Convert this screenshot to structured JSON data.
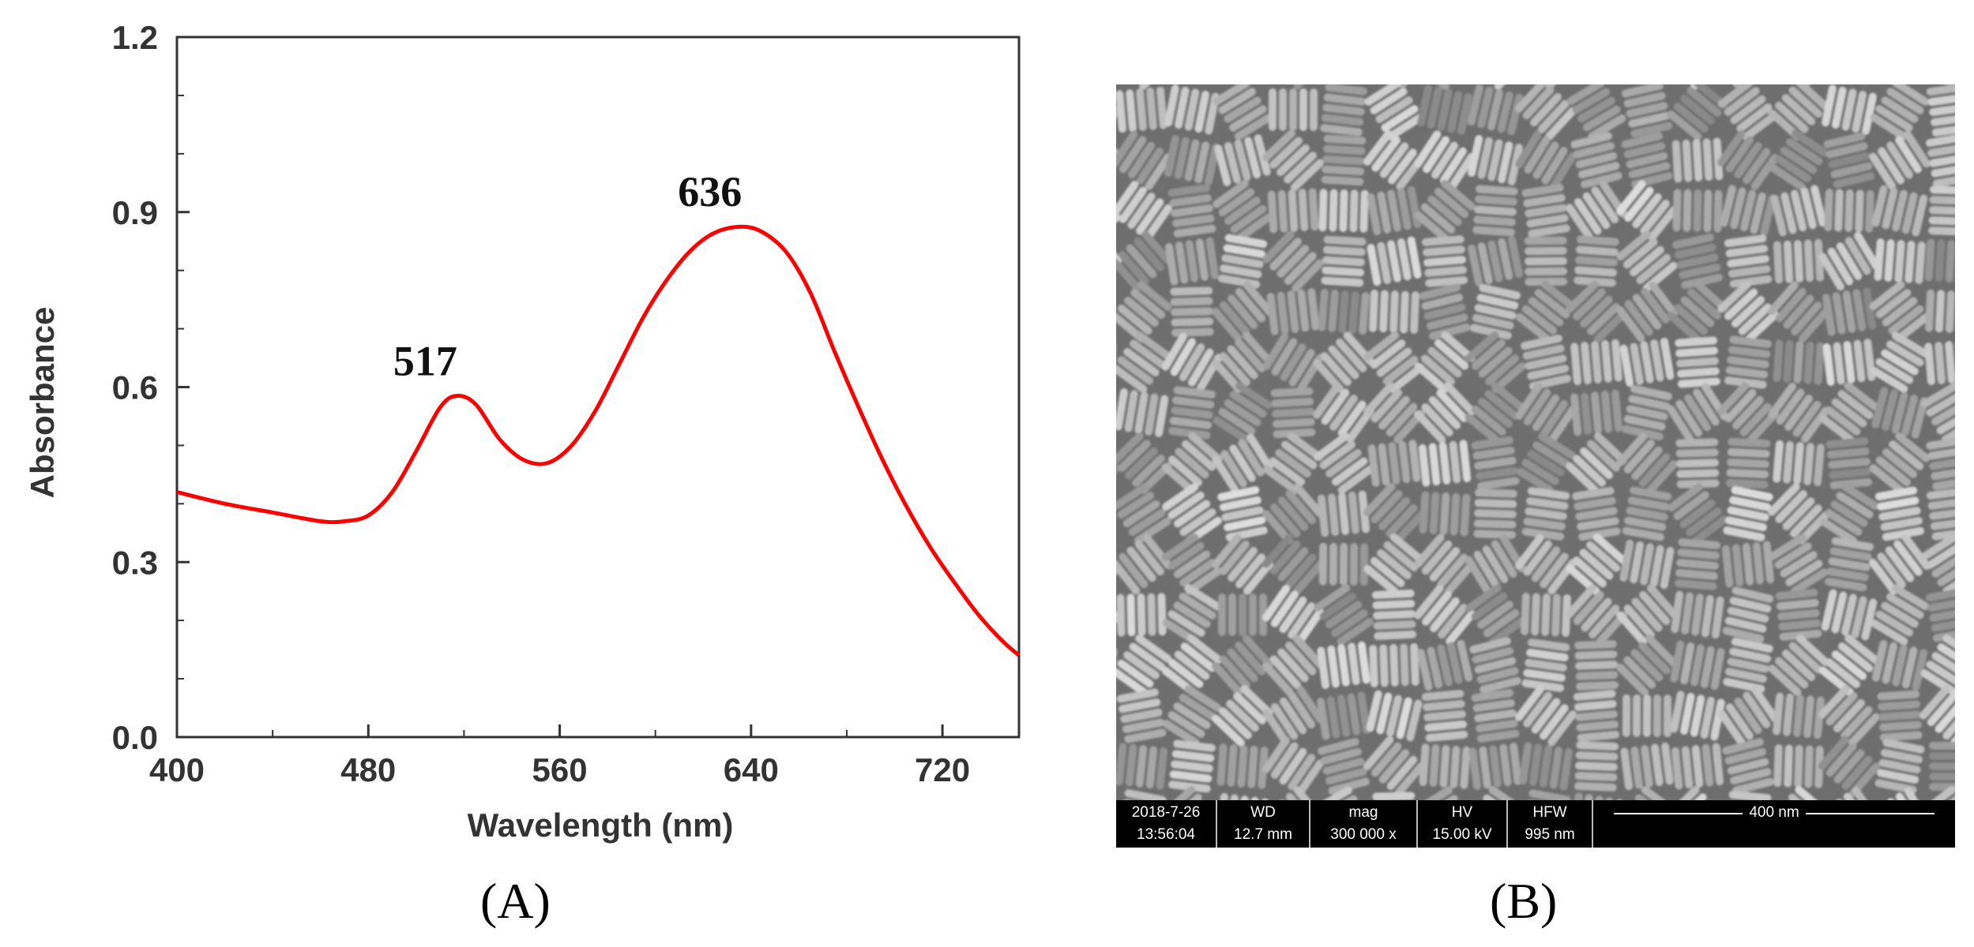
{
  "chart_data": {
    "type": "line",
    "title": "",
    "xlabel": "Wavelength (nm)",
    "ylabel": "Absorbance",
    "xlim": [
      400,
      752
    ],
    "ylim": [
      0.0,
      1.2
    ],
    "xticks": [
      "400",
      "480",
      "560",
      "640",
      "720"
    ],
    "yticks": [
      "0.0",
      "0.3",
      "0.6",
      "0.9",
      "1.2"
    ],
    "grid": false,
    "legend": "none",
    "series": [
      {
        "color": "#ff0000",
        "x": [
          400,
          420,
          440,
          460,
          470,
          480,
          490,
          500,
          510,
          517,
          525,
          535,
          545,
          555,
          565,
          575,
          585,
          595,
          605,
          615,
          625,
          636,
          645,
          655,
          665,
          675,
          685,
          695,
          705,
          715,
          725,
          735,
          745,
          752
        ],
        "y": [
          0.42,
          0.4,
          0.385,
          0.37,
          0.37,
          0.38,
          0.42,
          0.49,
          0.565,
          0.585,
          0.57,
          0.51,
          0.475,
          0.47,
          0.5,
          0.56,
          0.64,
          0.72,
          0.785,
          0.835,
          0.865,
          0.875,
          0.865,
          0.83,
          0.76,
          0.66,
          0.565,
          0.475,
          0.395,
          0.325,
          0.265,
          0.21,
          0.165,
          0.14
        ]
      }
    ],
    "annotations": [
      {
        "text": "517",
        "x": 517,
        "y": 0.585
      },
      {
        "text": "636",
        "x": 636,
        "y": 0.875
      }
    ]
  },
  "panels": {
    "a": "(A)",
    "b": "(B)"
  },
  "sem_info": {
    "date": "2018-7-26",
    "time": "13:56:04",
    "wd_label": "WD",
    "wd_value": "12.7 mm",
    "mag_label": "mag",
    "mag_value": "300 000 x",
    "hv_label": "HV",
    "hv_value": "15.00 kV",
    "hfw_label": "HFW",
    "hfw_value": "995 nm",
    "scale_bar": "400 nm"
  }
}
